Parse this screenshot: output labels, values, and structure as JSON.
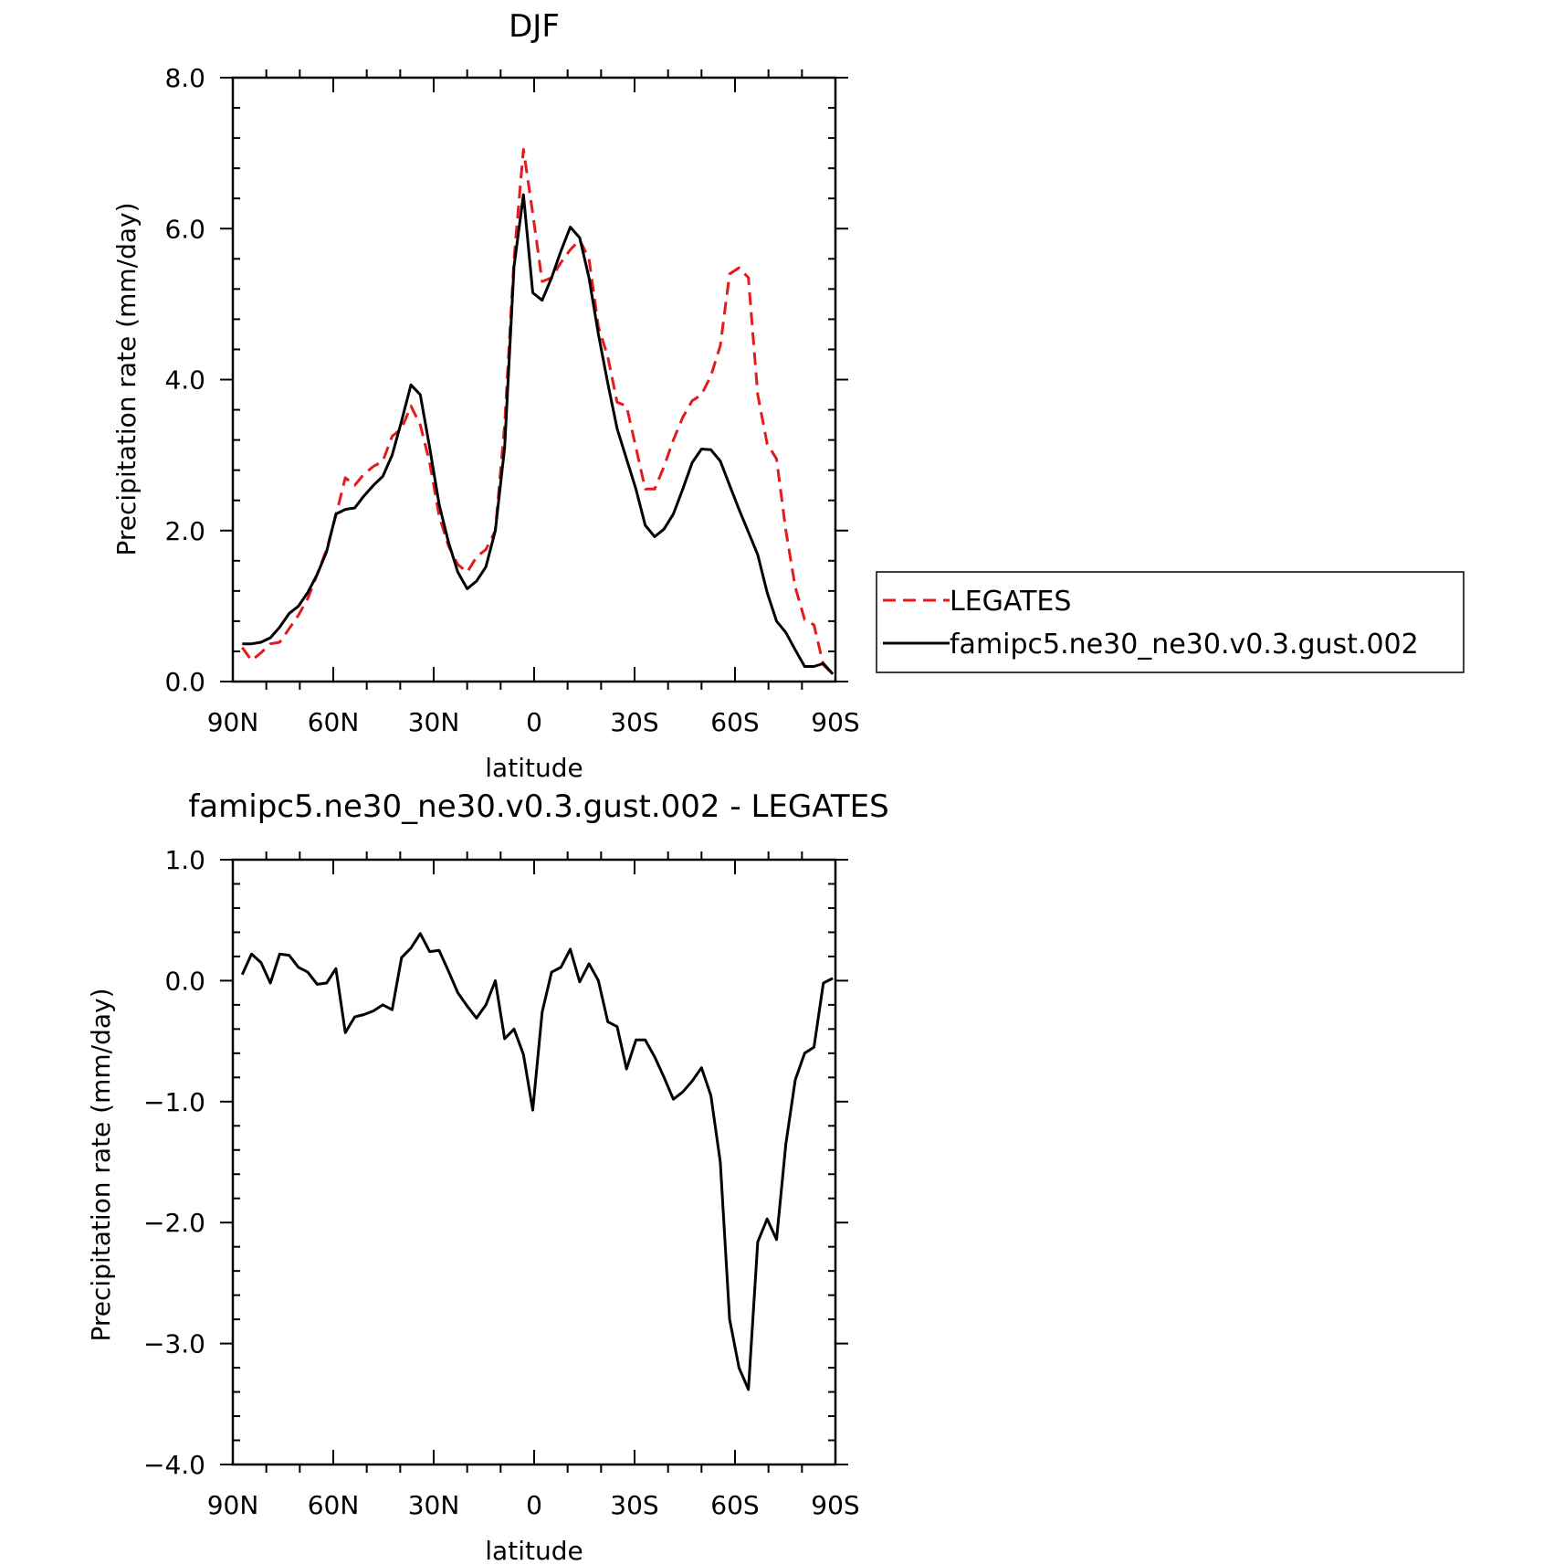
{
  "chart_data": [
    {
      "type": "line",
      "title": "DJF",
      "xlabel": "latitude",
      "ylabel": "Precipitation rate (mm/day)",
      "xlim": [
        -90,
        90
      ],
      "ylim": [
        0,
        8
      ],
      "x_tick_values": [
        -90,
        -60,
        -30,
        0,
        30,
        60,
        90
      ],
      "x_tick_labels": [
        "90N",
        "60N",
        "30N",
        "0",
        "30S",
        "60S",
        "90S"
      ],
      "y_tick_values": [
        0,
        2,
        4,
        6,
        8
      ],
      "y_tick_labels": [
        "0.0",
        "2.0",
        "4.0",
        "6.0",
        "8.0"
      ],
      "legend_position": "right",
      "x": [
        -87.2,
        -84.4,
        -81.6,
        -78.8,
        -76.0,
        -73.2,
        -70.4,
        -67.6,
        -64.8,
        -62.0,
        -59.2,
        -56.4,
        -53.6,
        -50.8,
        -48.0,
        -45.2,
        -42.4,
        -39.6,
        -36.8,
        -34.0,
        -31.2,
        -28.4,
        -25.6,
        -22.8,
        -20.0,
        -17.2,
        -14.4,
        -11.6,
        -8.8,
        -6.0,
        -3.2,
        -0.4,
        2.4,
        5.2,
        8.0,
        10.8,
        13.6,
        16.4,
        19.2,
        22.0,
        24.8,
        27.6,
        30.4,
        33.2,
        36.0,
        38.8,
        41.6,
        44.4,
        47.2,
        50.0,
        52.8,
        55.6,
        58.4,
        61.2,
        64.0,
        66.8,
        69.6,
        72.4,
        75.2,
        78.0,
        80.8,
        83.6,
        86.4,
        89.2
      ],
      "series": [
        {
          "name": "LEGATES",
          "color": "#e41a1c",
          "dash": "dashed",
          "values": [
            0.45,
            0.28,
            0.38,
            0.5,
            0.52,
            0.7,
            0.88,
            1.1,
            1.42,
            1.75,
            2.2,
            2.7,
            2.6,
            2.75,
            2.85,
            2.92,
            3.25,
            3.35,
            3.65,
            3.4,
            2.9,
            2.2,
            1.8,
            1.55,
            1.45,
            1.65,
            1.75,
            2.0,
            3.4,
            5.6,
            7.05,
            6.2,
            5.3,
            5.35,
            5.55,
            5.72,
            5.85,
            5.6,
            4.7,
            4.3,
            3.7,
            3.65,
            3.1,
            2.55,
            2.55,
            2.85,
            3.2,
            3.5,
            3.72,
            3.8,
            4.05,
            4.45,
            5.4,
            5.48,
            5.35,
            3.8,
            3.15,
            2.95,
            2.0,
            1.25,
            0.82,
            0.75,
            0.22,
            0.1
          ]
        },
        {
          "name": "famipc5.ne30_ne30.v0.3.gust.002",
          "color": "#000000",
          "dash": "solid",
          "values": [
            0.5,
            0.5,
            0.52,
            0.58,
            0.72,
            0.9,
            1.0,
            1.18,
            1.42,
            1.72,
            2.22,
            2.28,
            2.3,
            2.46,
            2.6,
            2.72,
            3.0,
            3.45,
            3.93,
            3.8,
            3.1,
            2.35,
            1.85,
            1.45,
            1.23,
            1.33,
            1.52,
            2.0,
            3.1,
            5.5,
            6.45,
            5.15,
            5.05,
            5.35,
            5.7,
            6.02,
            5.88,
            5.35,
            4.6,
            3.95,
            3.35,
            2.95,
            2.55,
            2.07,
            1.92,
            2.02,
            2.22,
            2.55,
            2.9,
            3.08,
            3.07,
            2.92,
            2.6,
            2.28,
            1.98,
            1.68,
            1.18,
            0.8,
            0.65,
            0.42,
            0.2,
            0.2,
            0.24,
            0.1
          ]
        }
      ]
    },
    {
      "type": "line",
      "title": "famipc5.ne30_ne30.v0.3.gust.002 - LEGATES",
      "xlabel": "latitude",
      "ylabel": "Precipitation rate (mm/day)",
      "xlim": [
        -90,
        90
      ],
      "ylim": [
        -4,
        1
      ],
      "x_tick_values": [
        -90,
        -60,
        -30,
        0,
        30,
        60,
        90
      ],
      "x_tick_labels": [
        "90N",
        "60N",
        "30N",
        "0",
        "30S",
        "60S",
        "90S"
      ],
      "y_tick_values": [
        -4,
        -3,
        -2,
        -1,
        0,
        1
      ],
      "y_tick_labels": [
        "−4.0",
        "−3.0",
        "−2.0",
        "−1.0",
        "0.0",
        "1.0"
      ],
      "x": [
        -87.2,
        -84.4,
        -81.6,
        -78.8,
        -76.0,
        -73.2,
        -70.4,
        -67.6,
        -64.8,
        -62.0,
        -59.2,
        -56.4,
        -53.6,
        -50.8,
        -48.0,
        -45.2,
        -42.4,
        -39.6,
        -36.8,
        -34.0,
        -31.2,
        -28.4,
        -25.6,
        -22.8,
        -20.0,
        -17.2,
        -14.4,
        -11.6,
        -8.8,
        -6.0,
        -3.2,
        -0.4,
        2.4,
        5.2,
        8.0,
        10.8,
        13.6,
        16.4,
        19.2,
        22.0,
        24.8,
        27.6,
        30.4,
        33.2,
        36.0,
        38.8,
        41.6,
        44.4,
        47.2,
        50.0,
        52.8,
        55.6,
        58.4,
        61.2,
        64.0,
        66.8,
        69.6,
        72.4,
        75.2,
        78.0,
        80.8,
        83.6,
        86.4,
        89.2
      ],
      "series": [
        {
          "color": "#000000",
          "dash": "solid",
          "values": [
            0.05,
            0.22,
            0.15,
            -0.02,
            0.22,
            0.21,
            0.11,
            0.07,
            -0.03,
            -0.02,
            0.1,
            -0.43,
            -0.3,
            -0.28,
            -0.25,
            -0.2,
            -0.24,
            0.19,
            0.27,
            0.39,
            0.24,
            0.25,
            0.08,
            -0.1,
            -0.21,
            -0.31,
            -0.2,
            0.0,
            -0.48,
            -0.4,
            -0.61,
            -1.07,
            -0.26,
            0.07,
            0.11,
            0.26,
            -0.01,
            0.14,
            0.0,
            -0.34,
            -0.38,
            -0.73,
            -0.49,
            -0.49,
            -0.63,
            -0.8,
            -0.98,
            -0.92,
            -0.83,
            -0.72,
            -0.95,
            -1.5,
            -2.8,
            -3.2,
            -3.38,
            -2.16,
            -1.97,
            -2.14,
            -1.35,
            -0.82,
            -0.6,
            -0.55,
            -0.02,
            0.02
          ]
        }
      ]
    }
  ]
}
